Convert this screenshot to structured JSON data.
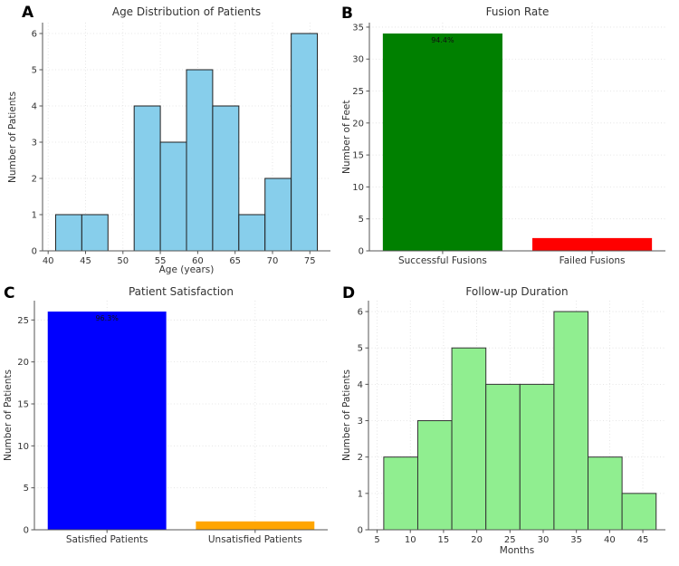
{
  "style": {
    "background": "#ffffff",
    "grid_color": "#dfdfdf",
    "spine_color": "#555555",
    "text_color": "#333333",
    "annotation_color": "#111111"
  },
  "chart_data": [
    {
      "panel_letter": "A",
      "type": "histogram",
      "title": "Age Distribution of Patients",
      "xlabel": "Age (years)",
      "ylabel": "Number of Patients",
      "bin_edges": [
        41,
        44.5,
        48,
        51.5,
        55,
        58.5,
        62,
        65.5,
        69,
        72.5,
        76
      ],
      "values": [
        1,
        1,
        0,
        4,
        3,
        5,
        4,
        1,
        2,
        6
      ],
      "bar_color": "#87CEEB",
      "bar_edge_color": "#1f1f1f",
      "xticks": [
        40,
        45,
        50,
        55,
        60,
        65,
        70,
        75
      ],
      "yticks": [
        0,
        1,
        2,
        3,
        4,
        5,
        6
      ],
      "xlim": [
        39.25,
        77.75
      ],
      "ylim": [
        0,
        6.3
      ],
      "grid": true,
      "annotations": []
    },
    {
      "panel_letter": "B",
      "type": "bar",
      "title": "Fusion Rate",
      "xlabel": "",
      "ylabel": "Number of Feet",
      "categories": [
        "Successful Fusions",
        "Failed Fusions"
      ],
      "values": [
        34,
        2
      ],
      "bar_colors": [
        "#008000",
        "#ff0000"
      ],
      "yticks": [
        0,
        5,
        10,
        15,
        20,
        25,
        30,
        35
      ],
      "xlim": [
        -0.49,
        1.49
      ],
      "ylim": [
        0,
        35.7
      ],
      "grid": true,
      "annotations": [
        {
          "bar": 0,
          "text": "94.4%"
        }
      ]
    },
    {
      "panel_letter": "C",
      "type": "bar",
      "title": "Patient Satisfaction",
      "xlabel": "",
      "ylabel": "Number of Patients",
      "categories": [
        "Satisfied Patients",
        "Unsatisfied Patients"
      ],
      "values": [
        26,
        1
      ],
      "bar_colors": [
        "#0000ff",
        "#ffa500"
      ],
      "yticks": [
        0,
        5,
        10,
        15,
        20,
        25
      ],
      "xlim": [
        -0.49,
        1.49
      ],
      "ylim": [
        0,
        27.3
      ],
      "grid": true,
      "annotations": [
        {
          "bar": 0,
          "text": "96.3%"
        }
      ]
    },
    {
      "panel_letter": "D",
      "type": "histogram",
      "title": "Follow-up Duration",
      "xlabel": "Months",
      "ylabel": "Number of Patients",
      "bin_edges": [
        6,
        11.125,
        16.25,
        21.375,
        26.5,
        31.625,
        36.75,
        41.875,
        47
      ],
      "values": [
        2,
        3,
        5,
        4,
        4,
        6,
        2,
        1
      ],
      "bar_color": "#90EE90",
      "bar_edge_color": "#333333",
      "xticks": [
        5,
        10,
        15,
        20,
        25,
        30,
        35,
        40,
        45
      ],
      "yticks": [
        0,
        1,
        2,
        3,
        4,
        5,
        6
      ],
      "xlim": [
        3.7,
        48.4
      ],
      "ylim": [
        0,
        6.3
      ],
      "grid": true,
      "annotations": []
    }
  ]
}
